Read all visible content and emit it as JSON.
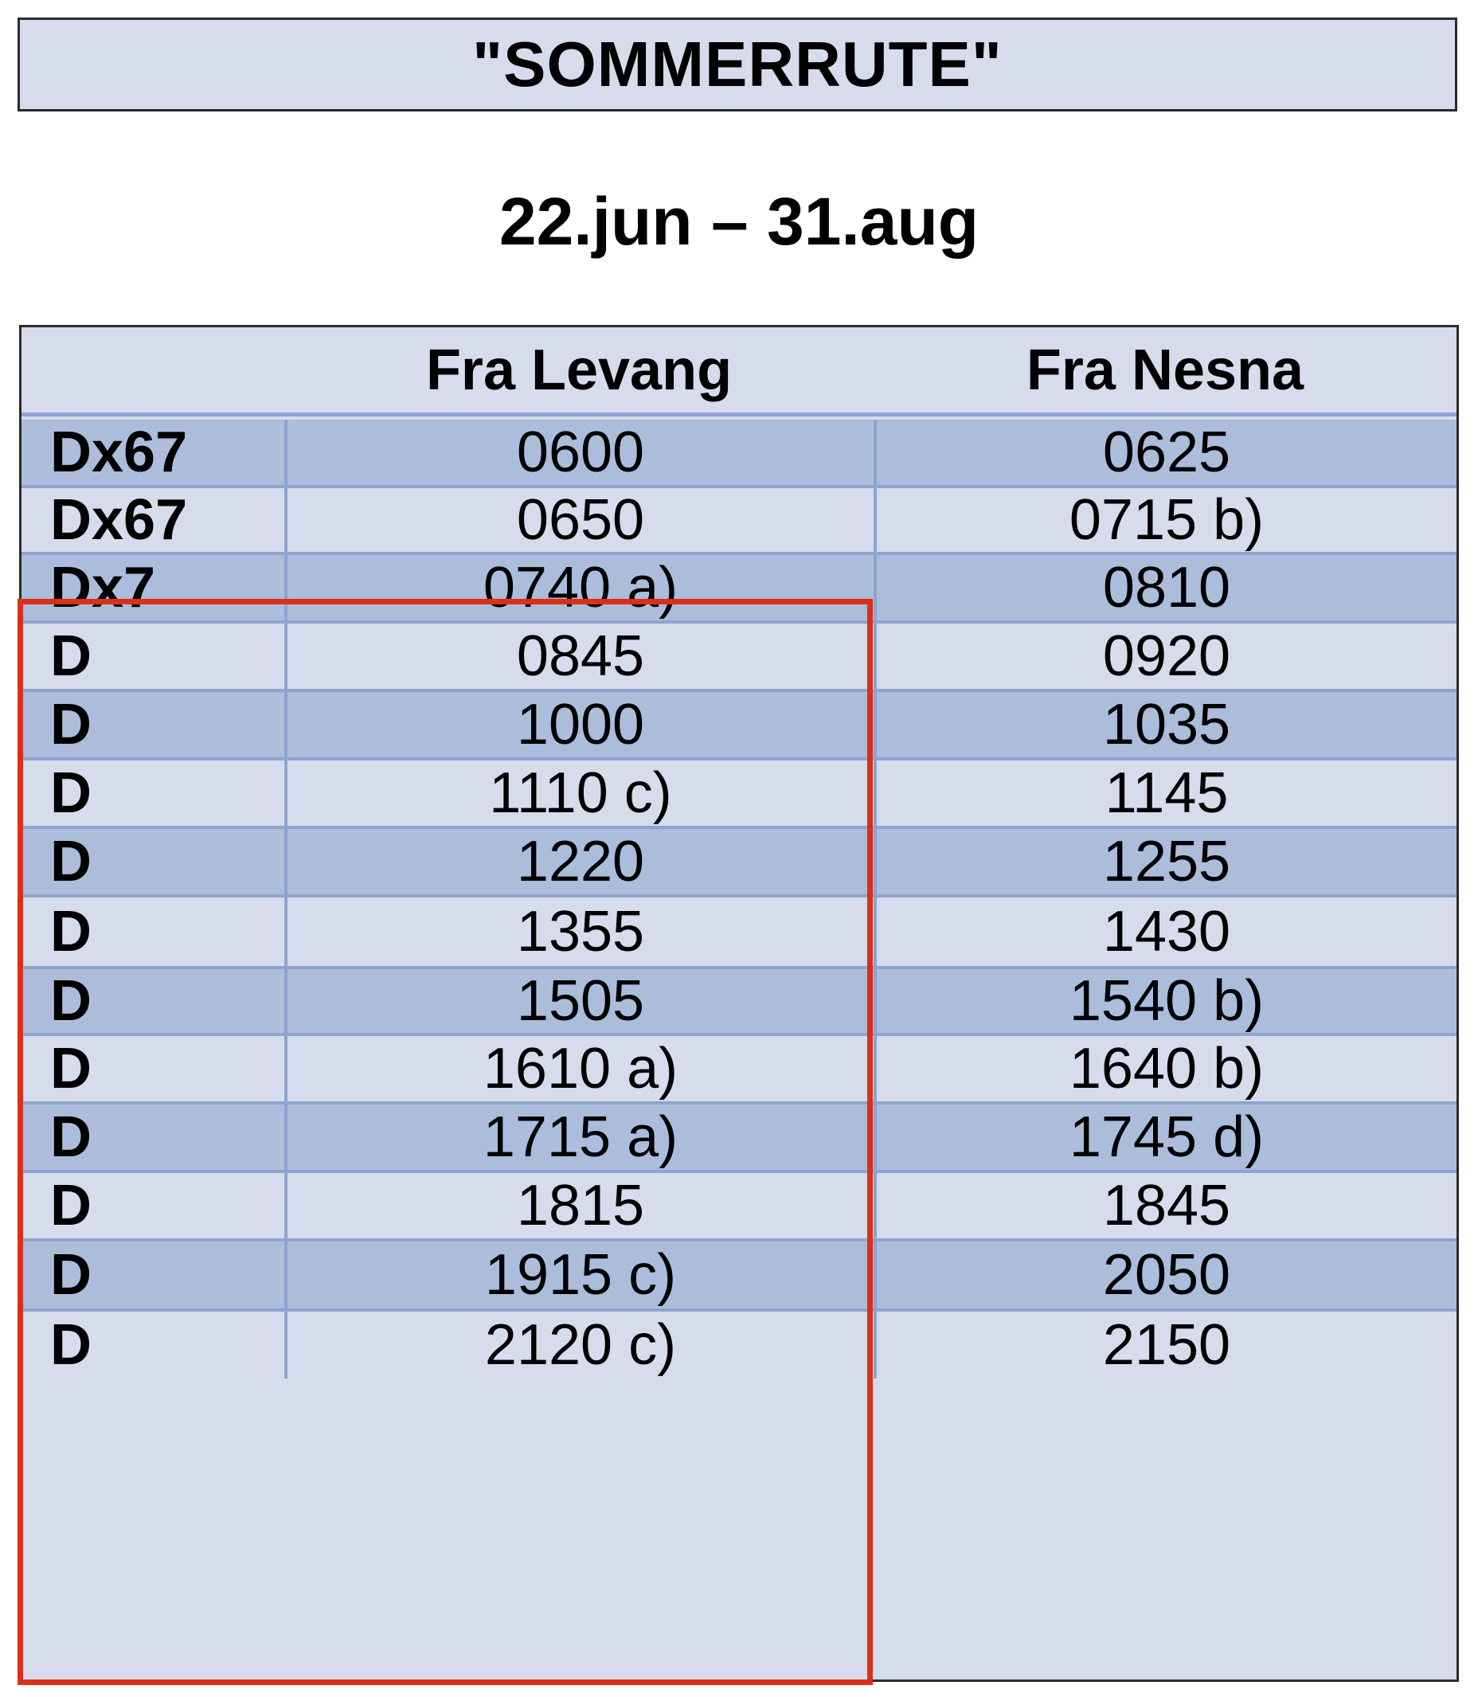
{
  "title": "\"SOMMERRUTE\"",
  "date_range": "22.jun – 31.aug",
  "table": {
    "headers": [
      "",
      "Fra Levang",
      "Fra Nesna"
    ],
    "rows": [
      [
        "Dx67",
        "0600",
        "0625"
      ],
      [
        "Dx67",
        "0650",
        "0715 b)"
      ],
      [
        "Dx7",
        "0740 a)",
        "0810"
      ],
      [
        "D",
        "0845",
        "0920"
      ],
      [
        "D",
        "1000",
        "1035"
      ],
      [
        "D",
        "1110 c)",
        "1145"
      ],
      [
        "D",
        "1220",
        "1255"
      ],
      [
        "D",
        "1355",
        "1430"
      ],
      [
        "D",
        "1505",
        "1540 b)"
      ],
      [
        "D",
        "1610 a)",
        "1640 b)"
      ],
      [
        "D",
        "1715 a)",
        "1745 d)"
      ],
      [
        "D",
        "1815",
        "1845"
      ],
      [
        "D",
        "1915 c)",
        "2050"
      ],
      [
        "D",
        "2120 c)",
        "2150"
      ]
    ]
  },
  "colors": {
    "header_bg": "#d6dceb",
    "row_dark": "#acbddb",
    "row_light": "#d6dceb",
    "grid_line": "#8ea3cf",
    "highlight_border": "#d9301a"
  }
}
